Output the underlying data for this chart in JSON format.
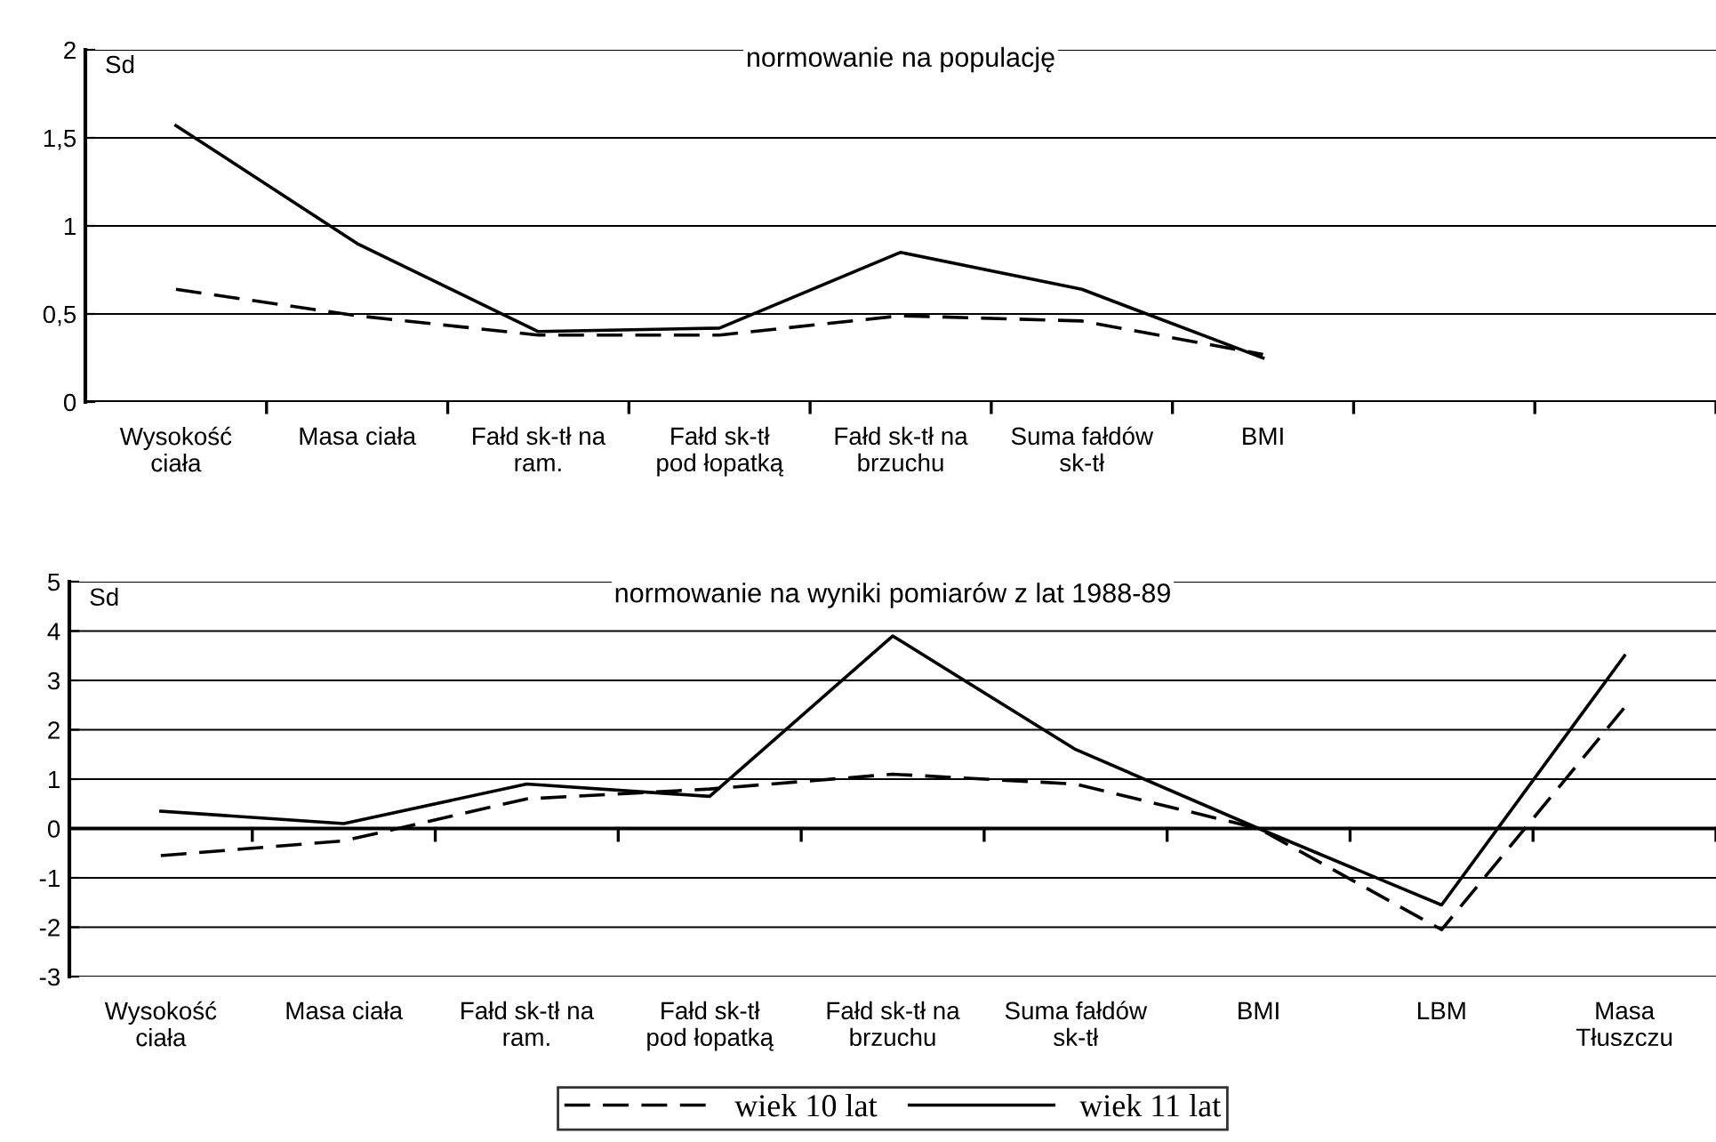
{
  "chart_data": [
    {
      "type": "line",
      "title": "normowanie na populację",
      "ylabel": "Sd",
      "categories": [
        "Wysokość\nciała",
        "Masa ciała",
        "Fałd sk-tł na\nram.",
        "Fałd sk-tł\npod łopatką",
        "Fałd sk-tł na\nbrzuchu",
        "Suma fałdów\nsk-tł",
        "BMI",
        null,
        null
      ],
      "series": [
        {
          "color": "#000000",
          "line_style": "dashed",
          "values": [
            0.64,
            0.49,
            0.38,
            0.38,
            0.49,
            0.46,
            0.27,
            null,
            null
          ]
        },
        {
          "color": "#000000",
          "line_style": "solid",
          "values": [
            1.57,
            0.9,
            0.4,
            0.42,
            0.85,
            0.64,
            0.25,
            null,
            null
          ]
        }
      ],
      "ylim": [
        0,
        2
      ],
      "yticks": [
        0,
        {
          "value": 0.5,
          "label": "0,5"
        },
        1,
        {
          "value": 1.5,
          "label": "1,5"
        },
        2
      ],
      "grid": "y",
      "legend": false,
      "marker": "none"
    },
    {
      "type": "line",
      "title": "normowanie na wyniki pomiarów z lat 1988-89",
      "ylabel": "Sd",
      "categories": [
        "Wysokość\nciała",
        "Masa ciała",
        "Fałd sk-tł na\nram.",
        "Fałd sk-tł\npod łopatką",
        "Fałd sk-tł na\nbrzuchu",
        "Suma fałdów\nsk-tł",
        "BMI",
        "LBM",
        "Masa\nTłuszczu"
      ],
      "series": [
        {
          "name": "wiek 10 lat",
          "color": "#000000",
          "line_style": "dashed",
          "values": [
            -0.55,
            -0.25,
            0.6,
            0.8,
            1.1,
            0.9,
            0,
            -2.05,
            2.45
          ]
        },
        {
          "name": "wiek 11 lat",
          "color": "#000000",
          "line_style": "solid",
          "values": [
            0.35,
            0.1,
            0.9,
            0.65,
            3.9,
            1.6,
            0,
            -1.55,
            3.5
          ]
        }
      ],
      "ylim": [
        -3,
        5
      ],
      "yticks": [
        -3,
        -2,
        -1,
        0,
        1,
        2,
        3,
        4,
        5
      ],
      "grid": "y",
      "legend": "bottom",
      "marker": "none"
    }
  ]
}
